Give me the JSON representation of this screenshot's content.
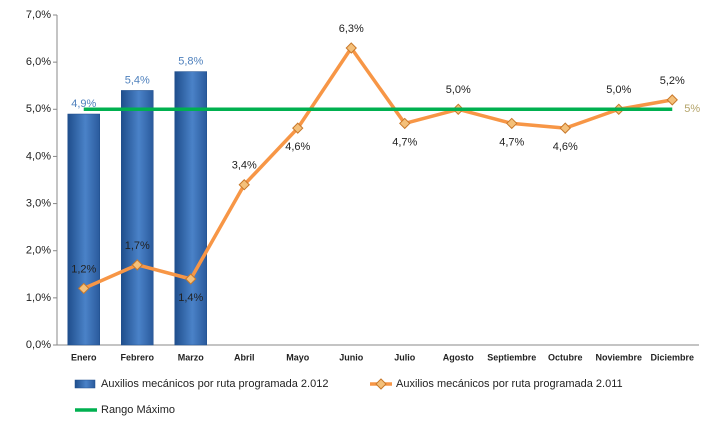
{
  "chart_data": {
    "type": "bar-line",
    "categories": [
      "Enero",
      "Febrero",
      "Marzo",
      "Abril",
      "Mayo",
      "Junio",
      "Julio",
      "Agosto",
      "Septiembre",
      "Octubre",
      "Noviembre",
      "Diciembre"
    ],
    "series": [
      {
        "name": "Auxilios mecánicos por ruta programada 2.012",
        "type": "bar",
        "color": "#3a6fb5",
        "values": [
          4.9,
          5.4,
          5.8,
          null,
          null,
          null,
          null,
          null,
          null,
          null,
          null,
          null
        ],
        "value_labels": [
          "4,9%",
          "5,4%",
          "5,8%",
          null,
          null,
          null,
          null,
          null,
          null,
          null,
          null,
          null
        ]
      },
      {
        "name": "Auxilios mecánicos por ruta programada 2.011",
        "type": "line",
        "color": "#f79646",
        "values": [
          1.2,
          1.7,
          1.4,
          3.4,
          4.6,
          6.3,
          4.7,
          5.0,
          4.7,
          4.6,
          5.0,
          5.2
        ],
        "value_labels": [
          "1,2%",
          "1,7%",
          "1,4%",
          "3,4%",
          "4,6%",
          "6,3%",
          "4,7%",
          "5,0%",
          "4,7%",
          "4,6%",
          "5,0%",
          "5,2%"
        ]
      },
      {
        "name": "Rango Máximo",
        "type": "line",
        "color": "#00b050",
        "values": [
          5,
          5,
          5,
          5,
          5,
          5,
          5,
          5,
          5,
          5,
          5,
          5
        ],
        "value_labels": [
          null,
          null,
          null,
          null,
          null,
          null,
          null,
          null,
          null,
          null,
          null,
          "5%"
        ]
      }
    ],
    "ylim": [
      0,
      7
    ],
    "yticks": [
      {
        "value": 0,
        "label": "0,0%"
      },
      {
        "value": 1,
        "label": "1,0%"
      },
      {
        "value": 2,
        "label": "2,0%"
      },
      {
        "value": 3,
        "label": "3,0%"
      },
      {
        "value": 4,
        "label": "4,0%"
      },
      {
        "value": 5,
        "label": "5,0%"
      },
      {
        "value": 6,
        "label": "6,0%"
      },
      {
        "value": 7,
        "label": "7,0%"
      }
    ],
    "legend": "bottom"
  }
}
